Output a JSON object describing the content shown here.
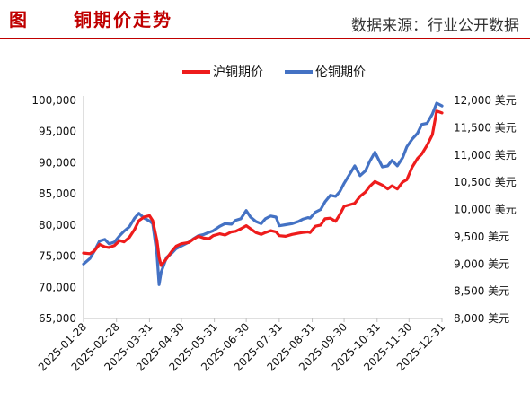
{
  "header": {
    "figure_label": "图",
    "title": "铜期价走势",
    "source": "数据来源：行业公开数据"
  },
  "colors": {
    "accent": "#c00000",
    "series_shfe": "#ee1c1c",
    "series_lme": "#4472c4"
  },
  "chart_data": {
    "type": "line",
    "title": "",
    "xlabel": "",
    "ylabel": "",
    "ylim": [
      65000,
      100000
    ],
    "y2lim": [
      8000,
      12000
    ],
    "grid": false,
    "legend": "top",
    "x_tick_labels": [
      "2025-01-28",
      "2025-02-28",
      "2025-03-31",
      "2025-04-30",
      "2025-05-31",
      "2025-06-30",
      "2025-07-31",
      "2025-08-31",
      "2025-09-30",
      "2025-10-31",
      "2025-11-30",
      "2025-12-31"
    ],
    "y_tick_labels": [
      "65,000",
      "70,000",
      "75,000",
      "80,000",
      "85,000",
      "90,000",
      "95,000",
      "100,000"
    ],
    "y_tick_values": [
      65000,
      70000,
      75000,
      80000,
      85000,
      90000,
      95000,
      100000
    ],
    "y2_tick_labels": [
      "8,000 美元",
      "8,500 美元",
      "9,000 美元",
      "9,500 美元",
      "10,000 美元",
      "10,500 美元",
      "11,000 美元",
      "11,500 美元",
      "12,000 美元"
    ],
    "y2_tick_values": [
      8000,
      8500,
      9000,
      9500,
      10000,
      10500,
      11000,
      11500,
      12000
    ],
    "series": [
      {
        "name": "沪铜期价",
        "axis": "left",
        "x": [
          "2025-01-28",
          "2025-02-03",
          "2025-02-07",
          "2025-02-12",
          "2025-02-17",
          "2025-02-21",
          "2025-02-26",
          "2025-03-03",
          "2025-03-07",
          "2025-03-12",
          "2025-03-17",
          "2025-03-21",
          "2025-03-26",
          "2025-03-31",
          "2025-04-03",
          "2025-04-07",
          "2025-04-09",
          "2025-04-11",
          "2025-04-16",
          "2025-04-21",
          "2025-04-25",
          "2025-04-30",
          "2025-05-07",
          "2025-05-12",
          "2025-05-16",
          "2025-05-21",
          "2025-05-26",
          "2025-05-30",
          "2025-06-05",
          "2025-06-10",
          "2025-06-16",
          "2025-06-20",
          "2025-06-25",
          "2025-06-30",
          "2025-07-04",
          "2025-07-09",
          "2025-07-14",
          "2025-07-18",
          "2025-07-23",
          "2025-07-28",
          "2025-07-31",
          "2025-08-06",
          "2025-08-12",
          "2025-08-18",
          "2025-08-22",
          "2025-08-27",
          "2025-08-29",
          "2025-09-03",
          "2025-09-08",
          "2025-09-12",
          "2025-09-17",
          "2025-09-22",
          "2025-09-26",
          "2025-09-30",
          "2025-10-10",
          "2025-10-15",
          "2025-10-20",
          "2025-10-24",
          "2025-10-29",
          "2025-10-31",
          "2025-11-05",
          "2025-11-10",
          "2025-11-14",
          "2025-11-19",
          "2025-11-24",
          "2025-11-28",
          "2025-12-03",
          "2025-12-08",
          "2025-12-12",
          "2025-12-17",
          "2025-12-22",
          "2025-12-26",
          "2025-12-31"
        ],
        "values": [
          75500,
          75400,
          75800,
          76900,
          76500,
          76400,
          76700,
          77500,
          77300,
          78000,
          79300,
          80700,
          81300,
          81500,
          80700,
          77500,
          74800,
          73500,
          74600,
          75800,
          76600,
          77000,
          77200,
          77800,
          78200,
          77900,
          77800,
          78300,
          78600,
          78400,
          78900,
          79000,
          79400,
          79900,
          79400,
          78800,
          78500,
          78800,
          79100,
          78900,
          78300,
          78200,
          78500,
          78700,
          78800,
          78900,
          78800,
          79800,
          80000,
          81000,
          81100,
          80600,
          81700,
          83000,
          83500,
          84600,
          85300,
          86200,
          87000,
          86800,
          86400,
          85800,
          86300,
          85800,
          86900,
          87300,
          89300,
          90700,
          91400,
          92800,
          94500,
          98300,
          98000
        ]
      },
      {
        "name": "伦铜期价",
        "axis": "right",
        "x": [
          "2025-01-28",
          "2025-02-03",
          "2025-02-07",
          "2025-02-12",
          "2025-02-17",
          "2025-02-21",
          "2025-02-26",
          "2025-03-03",
          "2025-03-07",
          "2025-03-12",
          "2025-03-17",
          "2025-03-21",
          "2025-03-26",
          "2025-03-31",
          "2025-04-03",
          "2025-04-07",
          "2025-04-09",
          "2025-04-11",
          "2025-04-16",
          "2025-04-21",
          "2025-04-25",
          "2025-04-30",
          "2025-05-07",
          "2025-05-12",
          "2025-05-16",
          "2025-05-21",
          "2025-05-26",
          "2025-05-30",
          "2025-06-05",
          "2025-06-10",
          "2025-06-16",
          "2025-06-20",
          "2025-06-25",
          "2025-06-30",
          "2025-07-04",
          "2025-07-09",
          "2025-07-14",
          "2025-07-18",
          "2025-07-23",
          "2025-07-28",
          "2025-07-31",
          "2025-08-06",
          "2025-08-12",
          "2025-08-18",
          "2025-08-22",
          "2025-08-27",
          "2025-08-29",
          "2025-09-03",
          "2025-09-08",
          "2025-09-12",
          "2025-09-17",
          "2025-09-22",
          "2025-09-26",
          "2025-09-30",
          "2025-10-10",
          "2025-10-15",
          "2025-10-20",
          "2025-10-24",
          "2025-10-29",
          "2025-10-31",
          "2025-11-05",
          "2025-11-10",
          "2025-11-14",
          "2025-11-19",
          "2025-11-24",
          "2025-11-28",
          "2025-12-03",
          "2025-12-08",
          "2025-12-12",
          "2025-12-17",
          "2025-12-22",
          "2025-12-26",
          "2025-12-31"
        ],
        "values": [
          9000,
          9100,
          9230,
          9420,
          9450,
          9370,
          9400,
          9520,
          9600,
          9680,
          9840,
          9930,
          9840,
          9790,
          9740,
          9180,
          8620,
          8850,
          9120,
          9200,
          9280,
          9330,
          9400,
          9470,
          9520,
          9540,
          9580,
          9610,
          9690,
          9740,
          9730,
          9800,
          9830,
          9980,
          9860,
          9780,
          9740,
          9830,
          9880,
          9860,
          9700,
          9720,
          9740,
          9780,
          9820,
          9850,
          9840,
          9950,
          10000,
          10140,
          10260,
          10240,
          10330,
          10480,
          10800,
          10620,
          10710,
          10880,
          11050,
          10970,
          10780,
          10800,
          10900,
          10800,
          10950,
          11150,
          11290,
          11400,
          11560,
          11580,
          11750,
          11950,
          11900
        ]
      }
    ]
  }
}
